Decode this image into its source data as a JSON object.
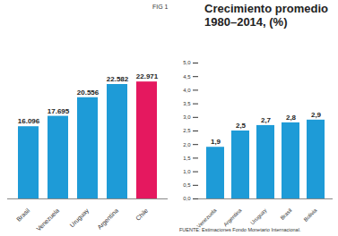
{
  "chart_data": [
    {
      "type": "bar",
      "annotations": [
        "FIG 1"
      ],
      "categories": [
        "Brasil",
        "Venezuela",
        "Uruguay",
        "Argentina",
        "Chile"
      ],
      "values": [
        16096,
        17695,
        20556,
        22582,
        22971
      ],
      "value_labels": [
        "16.096",
        "17.695",
        "20.556",
        "22.582",
        "22.971"
      ],
      "colors": [
        "#1e9bd7",
        "#1e9bd7",
        "#1e9bd7",
        "#1e9bd7",
        "#e5185f"
      ],
      "ylim": [
        5000,
        30000
      ],
      "data_labels": true,
      "tick_labels": "x"
    },
    {
      "type": "bar",
      "title": "Crecimiento promedio 1980–2014, (%)",
      "caption": "FUENTE: Estimaciones Fondo Monetario Internacional.",
      "categories": [
        "Venezuela",
        "Argentina",
        "Uruguay",
        "Brasil",
        "Bolivia"
      ],
      "values": [
        1.9,
        2.5,
        2.7,
        2.8,
        2.9
      ],
      "value_labels": [
        "1,9",
        "2,5",
        "2,7",
        "2,8",
        "2,9"
      ],
      "color": "#1e9bd7",
      "ylim": [
        0,
        5
      ],
      "yticks": [
        {
          "value": 0,
          "label": "0,0"
        },
        {
          "value": 0.5,
          "label": "0,5"
        },
        {
          "value": 1,
          "label": "1,0"
        },
        {
          "value": 1.5,
          "label": "1,5"
        },
        {
          "value": 2,
          "label": "2,0"
        },
        {
          "value": 2.5,
          "label": "2,5"
        },
        {
          "value": 3,
          "label": "3,0"
        },
        {
          "value": 3.5,
          "label": "3,5"
        },
        {
          "value": 4,
          "label": "4,0"
        },
        {
          "value": 4.5,
          "label": "4,5"
        },
        {
          "value": 5,
          "label": "5,0"
        }
      ],
      "data_labels": true
    }
  ]
}
